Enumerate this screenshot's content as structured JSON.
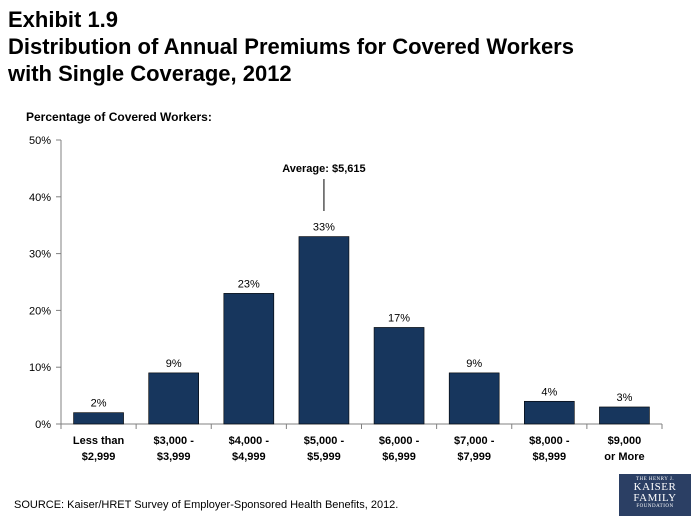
{
  "title": {
    "line1": "Exhibit 1.9",
    "line2": "Distribution of Annual Premiums for Covered Workers",
    "line3": "with Single Coverage, 2012"
  },
  "source": "SOURCE:  Kaiser/HRET Survey of Employer-Sponsored Health Benefits, 2012.",
  "logo": {
    "line1": "THE HENRY J.",
    "line2": "KAISER",
    "line3": "FAMILY",
    "line4": "FOUNDATION"
  },
  "colors": {
    "bar": "#17365d",
    "axis": "#808080"
  },
  "chart_data": {
    "type": "bar",
    "ylabel": "Percentage of Covered Workers:",
    "ylim": [
      0,
      50
    ],
    "yticks": [
      "0%",
      "10%",
      "20%",
      "30%",
      "40%",
      "50%"
    ],
    "categories": [
      [
        "Less than",
        "$2,999"
      ],
      [
        "$3,000 -",
        "$3,999"
      ],
      [
        "$4,000 -",
        "$4,999"
      ],
      [
        "$5,000 -",
        "$5,999"
      ],
      [
        "$6,000 -",
        "$6,999"
      ],
      [
        "$7,000 -",
        "$7,999"
      ],
      [
        "$8,000 -",
        "$8,999"
      ],
      [
        "$9,000",
        "or More"
      ]
    ],
    "values": [
      2,
      9,
      23,
      33,
      17,
      9,
      4,
      3
    ],
    "data_labels": [
      "2%",
      "9%",
      "23%",
      "33%",
      "17%",
      "9%",
      "4%",
      "3%"
    ],
    "annotation": {
      "text": "Average: $5,615",
      "category_index": 3
    },
    "grid": false
  }
}
